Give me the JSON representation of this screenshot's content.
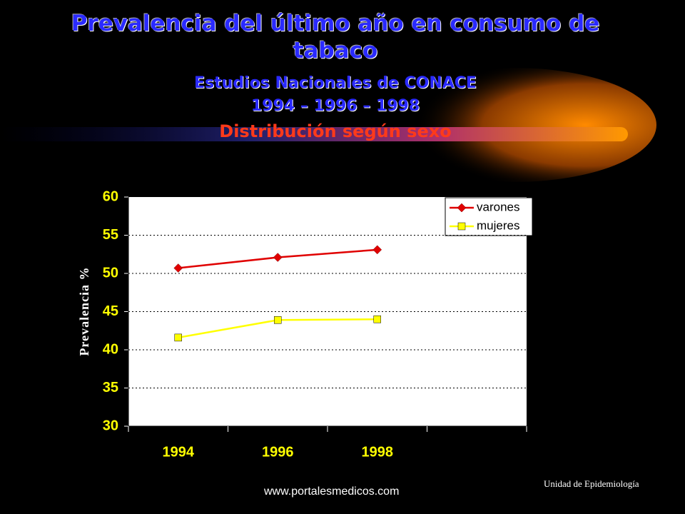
{
  "chart_data": {
    "type": "line",
    "title": "Prevalencia del último año en consumo de tabaco",
    "subtitle": "Estudios Nacionales de CONACE",
    "subtitle2": "1994 – 1996 – 1998",
    "subtitle3": "Distribución según sexo",
    "y_label": "Prevalencia  %",
    "categories": [
      "1994",
      "1996",
      "1998",
      null
    ],
    "series": [
      {
        "name": "varones",
        "color": "#e00000",
        "marker": "diamond",
        "values": [
          50.7,
          52.1,
          53.1,
          null
        ]
      },
      {
        "name": "mujeres",
        "color": "#ffff00",
        "marker": "square",
        "values": [
          41.6,
          43.9,
          44.0,
          null
        ]
      }
    ],
    "ylim": [
      30,
      60
    ],
    "yticks": [
      30,
      35,
      40,
      45,
      50,
      55,
      60
    ],
    "grid": true,
    "legend": "top-right"
  },
  "footer": {
    "url": "www.portalesmedicos.com",
    "unit": "Unidad de Epidemiología"
  }
}
